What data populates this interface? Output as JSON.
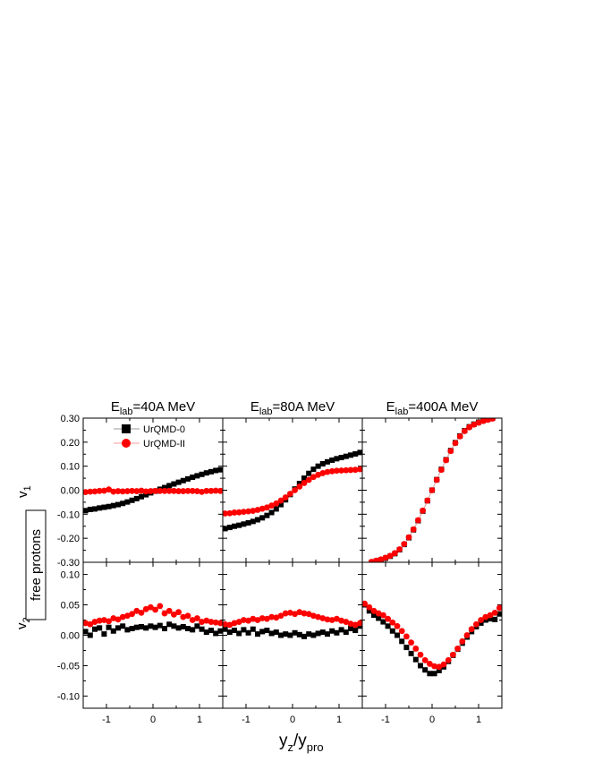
{
  "figure": {
    "xlabel_main": "y",
    "xlabel_sub1": "z",
    "xlabel_mid": "/y",
    "xlabel_sub2": "pro",
    "side_label": "free protons",
    "row_labels": [
      {
        "main": "v",
        "sub": "1"
      },
      {
        "main": "v",
        "sub": "2"
      }
    ],
    "col_titles": [
      {
        "pre": "E",
        "sub": "lab",
        "post": "=40A MeV"
      },
      {
        "pre": "E",
        "sub": "lab",
        "post": "=80A MeV"
      },
      {
        "pre": "E",
        "sub": "lab",
        "post": "=400A MeV"
      }
    ],
    "legend": [
      {
        "label": "UrQMD-0",
        "color": "#000000",
        "marker": "square"
      },
      {
        "label": "UrQMD-II",
        "color": "#ff0000",
        "marker": "circle"
      }
    ]
  },
  "chart_data": [
    {
      "type": "scatter",
      "row": "v1",
      "panel": "E_lab=40A MeV",
      "xlim": [
        -1.5,
        1.5
      ],
      "ylim": [
        -0.3,
        0.3
      ],
      "xticks": [
        -1,
        0,
        1
      ],
      "yticks": [
        -0.3,
        -0.2,
        -0.1,
        0.0,
        0.1,
        0.2,
        0.3
      ],
      "series": [
        {
          "name": "UrQMD-0",
          "x": [
            -1.45,
            -1.35,
            -1.25,
            -1.15,
            -1.05,
            -0.95,
            -0.85,
            -0.75,
            -0.65,
            -0.55,
            -0.45,
            -0.35,
            -0.25,
            -0.15,
            -0.05,
            0.05,
            0.15,
            0.25,
            0.35,
            0.45,
            0.55,
            0.65,
            0.75,
            0.85,
            0.95,
            1.05,
            1.15,
            1.25,
            1.35,
            1.45
          ],
          "y": [
            -0.085,
            -0.08,
            -0.078,
            -0.074,
            -0.071,
            -0.068,
            -0.064,
            -0.06,
            -0.055,
            -0.049,
            -0.042,
            -0.035,
            -0.027,
            -0.019,
            -0.011,
            -0.004,
            0.004,
            0.011,
            0.019,
            0.026,
            0.033,
            0.04,
            0.047,
            0.054,
            0.06,
            0.066,
            0.072,
            0.077,
            0.082,
            0.085
          ]
        },
        {
          "name": "UrQMD-II",
          "x": [
            -1.45,
            -1.35,
            -1.25,
            -1.15,
            -1.05,
            -0.95,
            -0.85,
            -0.75,
            -0.65,
            -0.55,
            -0.45,
            -0.35,
            -0.25,
            -0.15,
            -0.05,
            0.05,
            0.15,
            0.25,
            0.35,
            0.45,
            0.55,
            0.65,
            0.75,
            0.85,
            0.95,
            1.05,
            1.15,
            1.25,
            1.35,
            1.45
          ],
          "y": [
            -0.008,
            -0.006,
            -0.005,
            -0.003,
            -0.002,
            0.003,
            -0.006,
            -0.004,
            -0.005,
            -0.004,
            -0.003,
            -0.004,
            -0.002,
            -0.005,
            -0.004,
            -0.003,
            -0.003,
            -0.003,
            -0.003,
            -0.003,
            -0.004,
            -0.004,
            -0.003,
            -0.003,
            -0.004,
            -0.007,
            -0.003,
            -0.003,
            -0.002,
            -0.003
          ]
        }
      ]
    },
    {
      "type": "scatter",
      "row": "v1",
      "panel": "E_lab=80A MeV",
      "xlim": [
        -1.5,
        1.5
      ],
      "ylim": [
        -0.3,
        0.3
      ],
      "xticks": [
        -1,
        0,
        1
      ],
      "yticks": [
        -0.3,
        -0.2,
        -0.1,
        0.0,
        0.1,
        0.2,
        0.3
      ],
      "series": [
        {
          "name": "UrQMD-0",
          "x": [
            -1.45,
            -1.35,
            -1.25,
            -1.15,
            -1.05,
            -0.95,
            -0.85,
            -0.75,
            -0.65,
            -0.55,
            -0.45,
            -0.35,
            -0.25,
            -0.15,
            -0.05,
            0.05,
            0.15,
            0.25,
            0.35,
            0.45,
            0.55,
            0.65,
            0.75,
            0.85,
            0.95,
            1.05,
            1.15,
            1.25,
            1.35,
            1.45
          ],
          "y": [
            -0.16,
            -0.155,
            -0.15,
            -0.146,
            -0.141,
            -0.136,
            -0.13,
            -0.123,
            -0.115,
            -0.105,
            -0.093,
            -0.078,
            -0.06,
            -0.04,
            -0.018,
            0.005,
            0.028,
            0.05,
            0.07,
            0.087,
            0.1,
            0.11,
            0.118,
            0.125,
            0.131,
            0.136,
            0.141,
            0.146,
            0.151,
            0.157
          ]
        },
        {
          "name": "UrQMD-II",
          "x": [
            -1.45,
            -1.35,
            -1.25,
            -1.15,
            -1.05,
            -0.95,
            -0.85,
            -0.75,
            -0.65,
            -0.55,
            -0.45,
            -0.35,
            -0.25,
            -0.15,
            -0.05,
            0.05,
            0.15,
            0.25,
            0.35,
            0.45,
            0.55,
            0.65,
            0.75,
            0.85,
            0.95,
            1.05,
            1.15,
            1.25,
            1.35,
            1.45
          ],
          "y": [
            -0.097,
            -0.096,
            -0.093,
            -0.092,
            -0.09,
            -0.088,
            -0.086,
            -0.082,
            -0.077,
            -0.072,
            -0.064,
            -0.055,
            -0.043,
            -0.03,
            -0.015,
            0.0,
            0.015,
            0.03,
            0.043,
            0.055,
            0.064,
            0.071,
            0.076,
            0.079,
            0.081,
            0.082,
            0.083,
            0.084,
            0.085,
            0.087
          ]
        }
      ]
    },
    {
      "type": "scatter",
      "row": "v1",
      "panel": "E_lab=400A MeV",
      "xlim": [
        -1.5,
        1.5
      ],
      "ylim": [
        -0.3,
        0.3
      ],
      "xticks": [
        -1,
        0,
        1
      ],
      "yticks": [
        -0.3,
        -0.2,
        -0.1,
        0.0,
        0.1,
        0.2,
        0.3
      ],
      "series": [
        {
          "name": "UrQMD-0",
          "x": [
            -1.3,
            -1.2,
            -1.1,
            -1.0,
            -0.9,
            -0.8,
            -0.7,
            -0.6,
            -0.5,
            -0.4,
            -0.3,
            -0.2,
            -0.1,
            0.0,
            0.1,
            0.2,
            0.3,
            0.4,
            0.5,
            0.6,
            0.7,
            0.8,
            0.9,
            1.0,
            1.1,
            1.2,
            1.3
          ],
          "y": [
            -0.3,
            -0.295,
            -0.29,
            -0.283,
            -0.275,
            -0.264,
            -0.248,
            -0.226,
            -0.198,
            -0.165,
            -0.127,
            -0.087,
            -0.044,
            0.0,
            0.044,
            0.087,
            0.127,
            0.165,
            0.198,
            0.226,
            0.248,
            0.264,
            0.275,
            0.283,
            0.29,
            0.295,
            0.3
          ]
        },
        {
          "name": "UrQMD-II",
          "x": [
            -1.3,
            -1.2,
            -1.1,
            -1.0,
            -0.9,
            -0.8,
            -0.7,
            -0.6,
            -0.5,
            -0.4,
            -0.3,
            -0.2,
            -0.1,
            0.0,
            0.1,
            0.2,
            0.3,
            0.4,
            0.5,
            0.6,
            0.7,
            0.8,
            0.9,
            1.0,
            1.1,
            1.2,
            1.3
          ],
          "y": [
            -0.298,
            -0.293,
            -0.288,
            -0.281,
            -0.273,
            -0.262,
            -0.246,
            -0.224,
            -0.196,
            -0.163,
            -0.125,
            -0.085,
            -0.043,
            0.0,
            0.043,
            0.085,
            0.125,
            0.163,
            0.196,
            0.224,
            0.246,
            0.262,
            0.273,
            0.281,
            0.288,
            0.293,
            0.298
          ]
        }
      ]
    },
    {
      "type": "scatter",
      "row": "v2",
      "panel": "E_lab=40A MeV",
      "xlim": [
        -1.5,
        1.5
      ],
      "ylim": [
        -0.12,
        0.12
      ],
      "xticks": [
        -1,
        0,
        1
      ],
      "yticks": [
        -0.1,
        -0.05,
        0.0,
        0.05,
        0.1
      ],
      "series": [
        {
          "name": "UrQMD-0",
          "x": [
            -1.45,
            -1.35,
            -1.25,
            -1.15,
            -1.05,
            -0.95,
            -0.85,
            -0.75,
            -0.65,
            -0.55,
            -0.45,
            -0.35,
            -0.25,
            -0.15,
            -0.05,
            0.05,
            0.15,
            0.25,
            0.35,
            0.45,
            0.55,
            0.65,
            0.75,
            0.85,
            0.95,
            1.05,
            1.15,
            1.25,
            1.35,
            1.45
          ],
          "y": [
            0.006,
            0.0,
            0.01,
            0.012,
            0.002,
            0.013,
            0.007,
            0.012,
            0.015,
            0.009,
            0.011,
            0.013,
            0.014,
            0.012,
            0.015,
            0.013,
            0.016,
            0.011,
            0.018,
            0.015,
            0.012,
            0.014,
            0.011,
            0.009,
            0.015,
            0.01,
            0.005,
            0.008,
            0.003,
            0.007
          ]
        },
        {
          "name": "UrQMD-II",
          "x": [
            -1.45,
            -1.35,
            -1.25,
            -1.15,
            -1.05,
            -0.95,
            -0.85,
            -0.75,
            -0.65,
            -0.55,
            -0.45,
            -0.35,
            -0.25,
            -0.15,
            -0.05,
            0.05,
            0.15,
            0.25,
            0.35,
            0.45,
            0.55,
            0.65,
            0.75,
            0.85,
            0.95,
            1.05,
            1.15,
            1.25,
            1.35,
            1.45
          ],
          "y": [
            0.02,
            0.018,
            0.022,
            0.024,
            0.025,
            0.023,
            0.028,
            0.026,
            0.03,
            0.032,
            0.035,
            0.04,
            0.037,
            0.043,
            0.046,
            0.042,
            0.048,
            0.036,
            0.04,
            0.034,
            0.038,
            0.03,
            0.032,
            0.025,
            0.028,
            0.022,
            0.024,
            0.022,
            0.021,
            0.02
          ]
        }
      ]
    },
    {
      "type": "scatter",
      "row": "v2",
      "panel": "E_lab=80A MeV",
      "xlim": [
        -1.5,
        1.5
      ],
      "ylim": [
        -0.12,
        0.12
      ],
      "xticks": [
        -1,
        0,
        1
      ],
      "yticks": [
        -0.1,
        -0.05,
        0.0,
        0.05,
        0.1
      ],
      "series": [
        {
          "name": "UrQMD-0",
          "x": [
            -1.45,
            -1.35,
            -1.25,
            -1.15,
            -1.05,
            -0.95,
            -0.85,
            -0.75,
            -0.65,
            -0.55,
            -0.45,
            -0.35,
            -0.25,
            -0.15,
            -0.05,
            0.05,
            0.15,
            0.25,
            0.35,
            0.45,
            0.55,
            0.65,
            0.75,
            0.85,
            0.95,
            1.05,
            1.15,
            1.25,
            1.35,
            1.45
          ],
          "y": [
            0.01,
            0.005,
            0.008,
            0.003,
            0.009,
            0.004,
            0.01,
            0.002,
            0.006,
            0.008,
            0.003,
            0.005,
            0.0,
            0.002,
            0.0,
            0.004,
            0.001,
            -0.002,
            0.002,
            0.0,
            0.003,
            0.005,
            0.002,
            0.007,
            0.004,
            0.009,
            0.005,
            0.011,
            0.008,
            0.015
          ]
        },
        {
          "name": "UrQMD-II",
          "x": [
            -1.45,
            -1.35,
            -1.25,
            -1.15,
            -1.05,
            -0.95,
            -0.85,
            -0.75,
            -0.65,
            -0.55,
            -0.45,
            -0.35,
            -0.25,
            -0.15,
            -0.05,
            0.05,
            0.15,
            0.25,
            0.35,
            0.45,
            0.55,
            0.65,
            0.75,
            0.85,
            0.95,
            1.05,
            1.15,
            1.25,
            1.35,
            1.45
          ],
          "y": [
            0.018,
            0.017,
            0.02,
            0.022,
            0.025,
            0.024,
            0.027,
            0.025,
            0.028,
            0.027,
            0.03,
            0.029,
            0.032,
            0.036,
            0.037,
            0.035,
            0.038,
            0.036,
            0.035,
            0.032,
            0.03,
            0.028,
            0.026,
            0.025,
            0.027,
            0.024,
            0.022,
            0.019,
            0.017,
            0.02
          ]
        }
      ]
    },
    {
      "type": "scatter",
      "row": "v2",
      "panel": "E_lab=400A MeV",
      "xlim": [
        -1.5,
        1.5
      ],
      "ylim": [
        -0.12,
        0.12
      ],
      "xticks": [
        -1,
        0,
        1
      ],
      "yticks": [
        -0.1,
        -0.05,
        0.0,
        0.05,
        0.1
      ],
      "series": [
        {
          "name": "UrQMD-0",
          "x": [
            -1.45,
            -1.35,
            -1.25,
            -1.15,
            -1.05,
            -0.95,
            -0.85,
            -0.75,
            -0.65,
            -0.55,
            -0.45,
            -0.35,
            -0.25,
            -0.15,
            -0.05,
            0.05,
            0.15,
            0.25,
            0.35,
            0.45,
            0.55,
            0.65,
            0.75,
            0.85,
            0.95,
            1.05,
            1.15,
            1.25,
            1.35,
            1.45
          ],
          "y": [
            0.05,
            0.04,
            0.033,
            0.028,
            0.022,
            0.015,
            0.007,
            0.0,
            -0.01,
            -0.02,
            -0.03,
            -0.04,
            -0.05,
            -0.057,
            -0.063,
            -0.063,
            -0.058,
            -0.052,
            -0.043,
            -0.033,
            -0.023,
            -0.013,
            -0.003,
            0.006,
            0.014,
            0.02,
            0.025,
            0.027,
            0.026,
            0.035
          ]
        },
        {
          "name": "UrQMD-II",
          "x": [
            -1.45,
            -1.35,
            -1.25,
            -1.15,
            -1.05,
            -0.95,
            -0.85,
            -0.75,
            -0.65,
            -0.55,
            -0.45,
            -0.35,
            -0.25,
            -0.15,
            -0.05,
            0.05,
            0.15,
            0.25,
            0.35,
            0.45,
            0.55,
            0.65,
            0.75,
            0.85,
            0.95,
            1.05,
            1.15,
            1.25,
            1.35,
            1.45
          ],
          "y": [
            0.052,
            0.046,
            0.04,
            0.036,
            0.033,
            0.027,
            0.021,
            0.015,
            0.007,
            -0.002,
            -0.012,
            -0.022,
            -0.032,
            -0.041,
            -0.047,
            -0.051,
            -0.052,
            -0.048,
            -0.041,
            -0.032,
            -0.022,
            -0.01,
            0.0,
            0.01,
            0.018,
            0.025,
            0.03,
            0.033,
            0.037,
            0.045
          ]
        }
      ]
    }
  ]
}
